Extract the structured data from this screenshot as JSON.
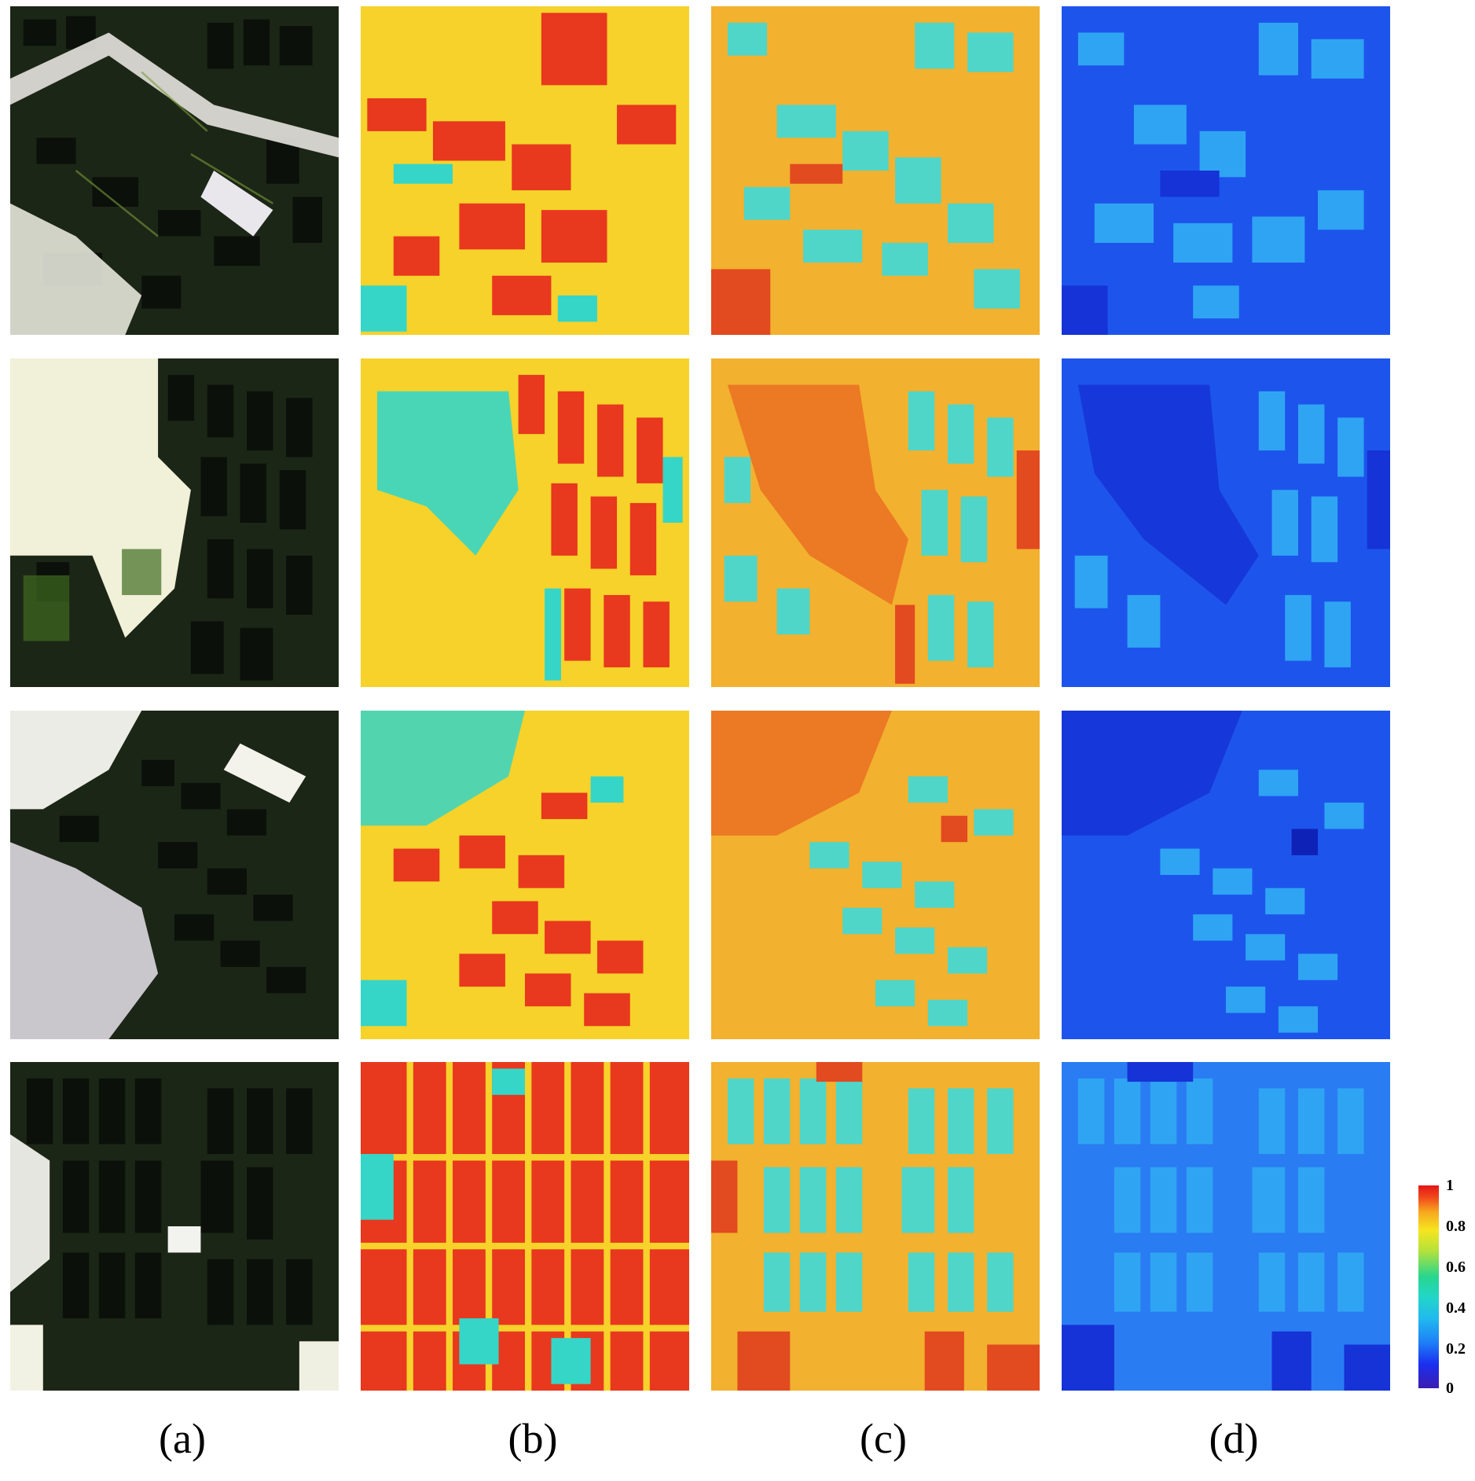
{
  "column_labels": [
    "(a)",
    "(b)",
    "(c)",
    "(d)"
  ],
  "colorbar": {
    "ticks": [
      "1",
      "0.8",
      "0.6",
      "0.4",
      "0.2",
      "0"
    ],
    "colors": [
      "#e31515",
      "#f7a71f",
      "#27d68e",
      "#21b8ef",
      "#1b2ff0",
      "#3a1db0"
    ]
  },
  "panel_palettes": {
    "a": {
      "base": "#1c2616",
      "field": "#0d120b",
      "accent": "#5a7a2a",
      "road": "#f1f1e6"
    },
    "b": {
      "base": "#f6d22a",
      "field": "#e8381e",
      "accent": "#35d6c7",
      "road": "#f6ea3a"
    },
    "c": {
      "base": "#f2b12e",
      "field": "#4fd6c9",
      "accent": "#e24a1f",
      "road": "#f6dc3a"
    },
    "d": {
      "base": "#1d55ec",
      "field": "#2fa4f3",
      "accent": "#1533d6",
      "road": "#2a7cf2"
    }
  }
}
